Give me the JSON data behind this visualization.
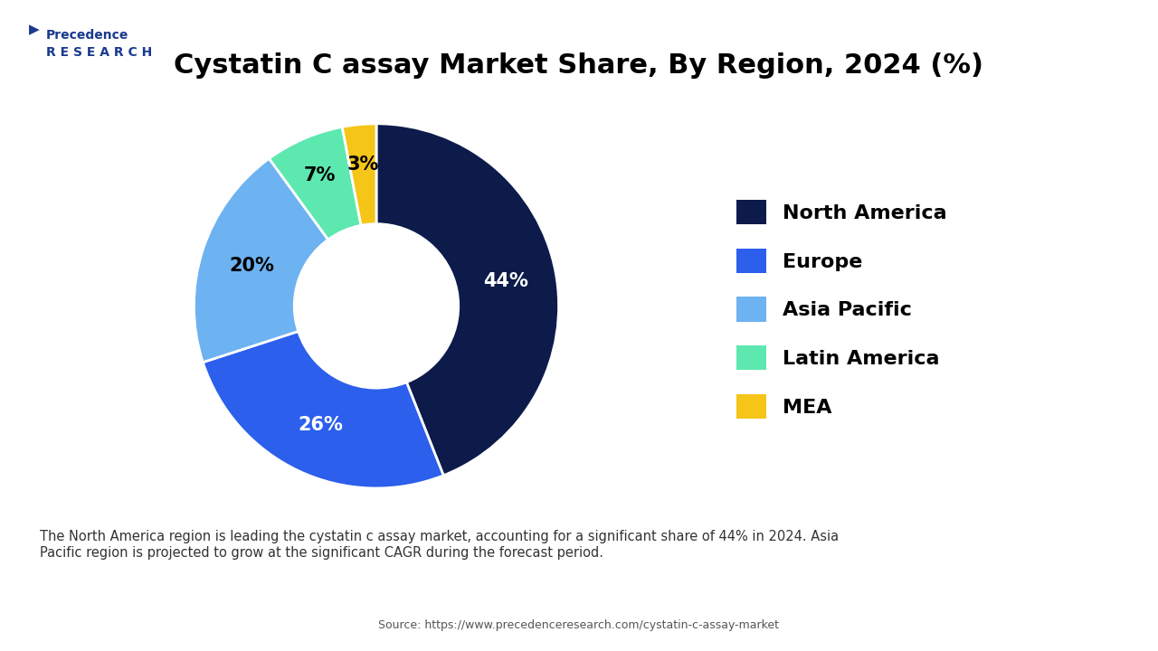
{
  "title": "Cystatin C assay Market Share, By Region, 2024 (%)",
  "segments": [
    "North America",
    "Europe",
    "Asia Pacific",
    "Latin America",
    "MEA"
  ],
  "values": [
    44,
    26,
    20,
    7,
    3
  ],
  "colors": [
    "#0d1b4b",
    "#2b5fec",
    "#6db3f2",
    "#5de8b0",
    "#f5c518"
  ],
  "labels": [
    "44%",
    "26%",
    "20%",
    "7%",
    "3%"
  ],
  "startangle": 90,
  "background_color": "#ffffff",
  "note_text": "The North America region is leading the cystatin c assay market, accounting for a significant share of 44% in 2024. Asia\nPacific region is projected to grow at the significant CAGR during the forecast period.",
  "note_bg": "#e8f0fe",
  "source_text": "Source: https://www.precedenceresearch.com/cystatin-c-assay-market",
  "title_fontsize": 22,
  "legend_fontsize": 16,
  "label_fontsize": 15
}
